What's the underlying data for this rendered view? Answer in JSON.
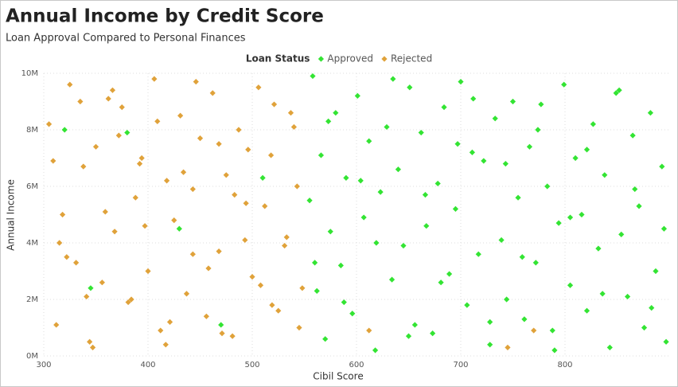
{
  "chart_data": {
    "type": "scatter",
    "title": "Annual Income by Credit Score",
    "subtitle": "Loan Approval Compared to Personal Finances",
    "legend_title": "Loan Status",
    "x_label": "Cibil Score",
    "y_label": "Annual Income",
    "xlim": [
      300,
      900
    ],
    "ylim": [
      0,
      10000000
    ],
    "xticks": [
      300,
      400,
      500,
      600,
      700,
      800
    ],
    "yticks": [
      {
        "value": 0,
        "label": "0M"
      },
      {
        "value": 2000000,
        "label": "2M"
      },
      {
        "value": 4000000,
        "label": "4M"
      },
      {
        "value": 6000000,
        "label": "6M"
      },
      {
        "value": 8000000,
        "label": "8M"
      },
      {
        "value": 10000000,
        "label": "10M"
      }
    ],
    "grid": true,
    "series": [
      {
        "name": "Approved",
        "color": "#33e433",
        "x": [
          555,
          558,
          562,
          566,
          570,
          575,
          580,
          585,
          590,
          596,
          601,
          607,
          612,
          618,
          623,
          629,
          634,
          640,
          645,
          651,
          656,
          662,
          667,
          673,
          678,
          684,
          689,
          695,
          700,
          706,
          711,
          717,
          722,
          728,
          733,
          739,
          744,
          750,
          755,
          761,
          766,
          772,
          777,
          783,
          788,
          794,
          799,
          805,
          810,
          816,
          821,
          827,
          832,
          838,
          843,
          849,
          854,
          860,
          865,
          871,
          876,
          882,
          887,
          893,
          897,
          560,
          573,
          588,
          604,
          619,
          635,
          650,
          666,
          681,
          697,
          712,
          728,
          743,
          759,
          774,
          790,
          805,
          821,
          836,
          852,
          867,
          883,
          895,
          320,
          345,
          380,
          430,
          470,
          510
        ],
        "values": [
          5500000,
          9900000,
          2300000,
          7100000,
          600000,
          4400000,
          8600000,
          3200000,
          6300000,
          1500000,
          9200000,
          4900000,
          7600000,
          200000,
          5800000,
          8100000,
          2700000,
          6600000,
          3900000,
          9500000,
          1100000,
          7900000,
          4600000,
          800000,
          6100000,
          8800000,
          2900000,
          5200000,
          9700000,
          1800000,
          7200000,
          3600000,
          6900000,
          400000,
          8400000,
          4100000,
          2000000,
          9000000,
          5600000,
          1300000,
          7400000,
          3300000,
          8900000,
          6000000,
          900000,
          4700000,
          9600000,
          2500000,
          7000000,
          5000000,
          1600000,
          8200000,
          3800000,
          6400000,
          300000,
          9300000,
          4300000,
          2100000,
          7800000,
          5300000,
          1000000,
          8600000,
          3000000,
          6700000,
          500000,
          3300000,
          8300000,
          1900000,
          6200000,
          4000000,
          9800000,
          700000,
          5700000,
          2600000,
          7500000,
          9100000,
          1200000,
          6800000,
          3500000,
          8000000,
          200000,
          4900000,
          7300000,
          2200000,
          9400000,
          5900000,
          1700000,
          4500000,
          8000000,
          2400000,
          7900000,
          4500000,
          1100000,
          6300000
        ]
      },
      {
        "name": "Rejected",
        "color": "#e0a23a",
        "x": [
          305,
          312,
          318,
          325,
          331,
          338,
          344,
          350,
          356,
          362,
          368,
          375,
          381,
          388,
          394,
          400,
          406,
          412,
          418,
          425,
          431,
          437,
          443,
          450,
          456,
          462,
          468,
          475,
          481,
          487,
          493,
          500,
          506,
          512,
          518,
          525,
          531,
          537,
          543,
          548,
          309,
          322,
          335,
          347,
          359,
          372,
          384,
          397,
          409,
          421,
          434,
          446,
          458,
          471,
          483,
          496,
          508,
          521,
          533,
          545,
          315,
          341,
          366,
          392,
          417,
          443,
          468,
          494,
          519,
          540,
          612,
          745,
          770
        ],
        "values": [
          8200000,
          1100000,
          5000000,
          9600000,
          3300000,
          6700000,
          500000,
          7400000,
          2600000,
          9100000,
          4400000,
          8800000,
          1900000,
          5600000,
          7000000,
          3000000,
          9800000,
          900000,
          6200000,
          4800000,
          8500000,
          2200000,
          5900000,
          7700000,
          1400000,
          9300000,
          3700000,
          6400000,
          700000,
          8000000,
          4100000,
          2800000,
          9500000,
          5300000,
          7100000,
          1600000,
          3900000,
          8600000,
          6000000,
          2400000,
          6900000,
          3500000,
          9000000,
          300000,
          5100000,
          7800000,
          2000000,
          4600000,
          8300000,
          1200000,
          6500000,
          9700000,
          3100000,
          800000,
          5700000,
          7300000,
          2500000,
          8900000,
          4200000,
          1000000,
          4000000,
          2100000,
          9400000,
          6800000,
          400000,
          3600000,
          7500000,
          5400000,
          1800000,
          8100000,
          900000,
          300000,
          900000
        ]
      }
    ]
  }
}
